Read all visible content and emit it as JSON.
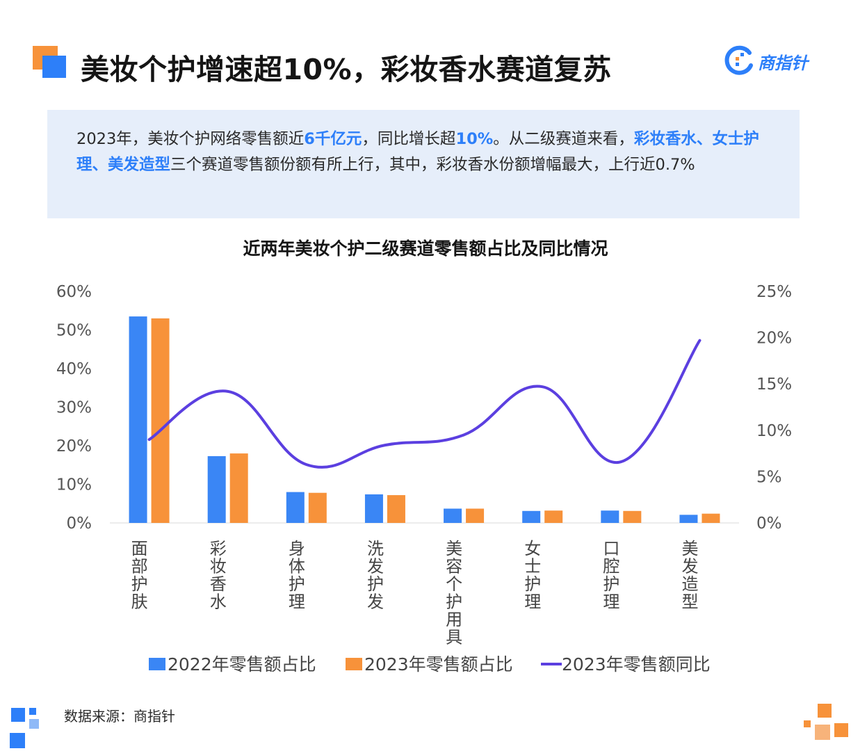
{
  "header": {
    "title": "美妆个护增速超10%，彩妆香水赛道复苏",
    "brand": "商指针"
  },
  "summary": {
    "p1": "2023年，美妆个护网络零售额近",
    "h1": "6千亿元",
    "p2": "，同比增长超",
    "h2": "10%",
    "p3": "。从二级赛道来看，",
    "h3": "彩妆香水、女士护理、美发造型",
    "p4": "三个赛道零售额份额有所上行，其中，彩妆香水份额增幅最大，上行近0.7%"
  },
  "footer": {
    "source": "数据来源：商指针"
  },
  "colors": {
    "blue": "#3a86f5",
    "orange": "#f7923a",
    "line": "#5b3fe0",
    "accent": "#2d7ff9"
  },
  "chart_data": {
    "type": "bar",
    "title": "近两年美妆个护二级赛道零售额占比及同比情况",
    "categories": [
      "面部护肤",
      "彩妆香水",
      "身体护理",
      "洗发护发",
      "美容个护用具",
      "女士护理",
      "口腔护理",
      "美发造型"
    ],
    "series": [
      {
        "name": "2022年零售额占比",
        "type": "bar",
        "axis": "left",
        "color": "#3a86f5",
        "values": [
          53.5,
          17.3,
          8.0,
          7.4,
          3.7,
          3.1,
          3.2,
          2.1
        ]
      },
      {
        "name": "2023年零售额占比",
        "type": "bar",
        "axis": "left",
        "color": "#f7923a",
        "values": [
          53.0,
          18.0,
          7.8,
          7.2,
          3.7,
          3.2,
          3.1,
          2.4
        ]
      },
      {
        "name": "2023年零售额同比",
        "type": "line",
        "axis": "right",
        "color": "#5b3fe0",
        "values": [
          9.0,
          14.2,
          6.3,
          8.4,
          9.5,
          14.7,
          6.6,
          19.7
        ]
      }
    ],
    "left_axis": {
      "ticks": [
        "60%",
        "50%",
        "40%",
        "30%",
        "20%",
        "10%",
        "0%"
      ],
      "ylim": [
        0,
        60
      ]
    },
    "right_axis": {
      "ticks": [
        "25%",
        "20%",
        "15%",
        "10%",
        "5%",
        "0%"
      ],
      "ylim": [
        0,
        25
      ]
    },
    "legend": "bottom"
  }
}
